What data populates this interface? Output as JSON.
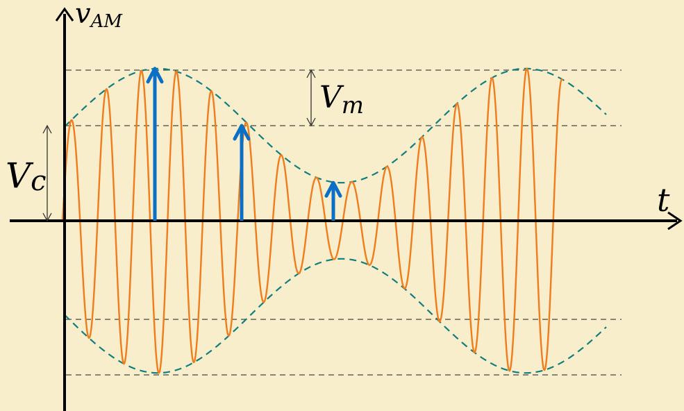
{
  "diagram": {
    "y_axis_label": {
      "main": "v",
      "sub": "AM"
    },
    "x_axis_label": "t",
    "carrier_amplitude_label": {
      "main": "V",
      "sub": "c"
    },
    "modulation_amplitude_label": {
      "main": "V",
      "sub": "m"
    }
  },
  "signal": {
    "carrier_amplitude": 1.0,
    "modulation_amplitude": 0.6,
    "carrier_cycles_per_modulation_period": 10.5,
    "modulation_periods_shown": 1.4
  },
  "colors": {
    "background": "#f8eecb",
    "carrier_wave": "#f07c1b",
    "envelope": "#117e7e",
    "phasor_arrows": "#0b6fc5",
    "axes": "#000000",
    "reference_lines": "#444444"
  }
}
